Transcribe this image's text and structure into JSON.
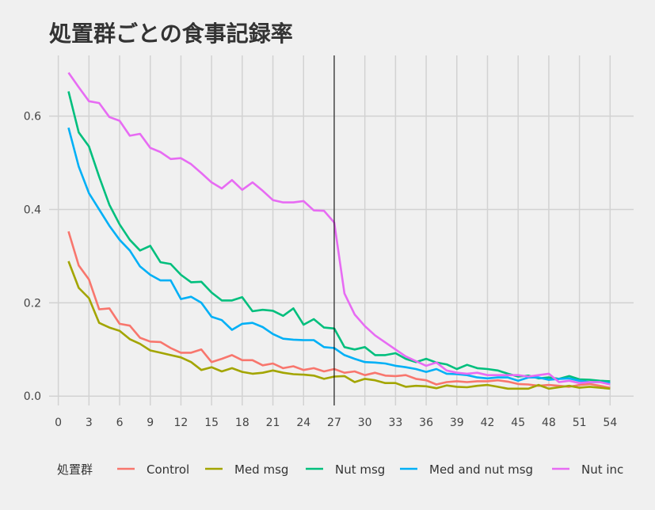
{
  "chart_data": {
    "type": "line",
    "title": "処置群ごとの食事記録率",
    "xlabel": "",
    "ylabel": "",
    "xlim": [
      -0.9,
      56.3
    ],
    "ylim": [
      -0.02,
      0.73
    ],
    "x_ticks": [
      0,
      3,
      6,
      9,
      12,
      15,
      18,
      21,
      24,
      27,
      30,
      33,
      36,
      39,
      42,
      45,
      48,
      51,
      54
    ],
    "y_ticks": [
      0.0,
      0.2,
      0.4,
      0.6
    ],
    "y_tick_labels": [
      "0.0",
      "0.2",
      "0.4",
      "0.6"
    ],
    "vline_x": 27,
    "grid": true,
    "legend_title": "処置群",
    "legend_position": "bottom",
    "x": [
      1,
      2,
      3,
      4,
      5,
      6,
      7,
      8,
      9,
      10,
      11,
      12,
      13,
      14,
      15,
      16,
      17,
      18,
      19,
      20,
      21,
      22,
      23,
      24,
      25,
      26,
      27,
      28,
      29,
      30,
      31,
      32,
      33,
      34,
      35,
      36,
      37,
      38,
      39,
      40,
      41,
      42,
      43,
      44,
      45,
      46,
      47,
      48,
      49,
      50,
      51,
      52,
      53,
      54
    ],
    "series": [
      {
        "name": "Control",
        "color": "#F8766D",
        "values": [
          0.353,
          0.28,
          0.25,
          0.186,
          0.188,
          0.155,
          0.151,
          0.125,
          0.117,
          0.116,
          0.103,
          0.093,
          0.093,
          0.1,
          0.073,
          0.08,
          0.088,
          0.077,
          0.077,
          0.066,
          0.07,
          0.06,
          0.064,
          0.056,
          0.06,
          0.053,
          0.058,
          0.05,
          0.053,
          0.045,
          0.05,
          0.044,
          0.043,
          0.045,
          0.037,
          0.034,
          0.025,
          0.03,
          0.032,
          0.03,
          0.032,
          0.032,
          0.034,
          0.031,
          0.026,
          0.025,
          0.022,
          0.024,
          0.022,
          0.02,
          0.024,
          0.026,
          0.022,
          0.018
        ]
      },
      {
        "name": "Med msg",
        "color": "#A3A500",
        "values": [
          0.289,
          0.232,
          0.21,
          0.157,
          0.147,
          0.14,
          0.122,
          0.112,
          0.098,
          0.093,
          0.088,
          0.083,
          0.073,
          0.056,
          0.062,
          0.053,
          0.06,
          0.052,
          0.048,
          0.05,
          0.055,
          0.05,
          0.047,
          0.046,
          0.044,
          0.037,
          0.042,
          0.043,
          0.03,
          0.037,
          0.034,
          0.028,
          0.028,
          0.02,
          0.022,
          0.021,
          0.017,
          0.023,
          0.02,
          0.019,
          0.022,
          0.024,
          0.02,
          0.016,
          0.016,
          0.016,
          0.024,
          0.016,
          0.019,
          0.022,
          0.018,
          0.02,
          0.018,
          0.016
        ]
      },
      {
        "name": "Nut msg",
        "color": "#00BF7D",
        "values": [
          0.653,
          0.565,
          0.535,
          0.47,
          0.41,
          0.368,
          0.335,
          0.312,
          0.322,
          0.287,
          0.283,
          0.26,
          0.244,
          0.245,
          0.222,
          0.205,
          0.205,
          0.212,
          0.182,
          0.185,
          0.183,
          0.172,
          0.188,
          0.153,
          0.165,
          0.147,
          0.145,
          0.105,
          0.1,
          0.105,
          0.088,
          0.088,
          0.092,
          0.08,
          0.073,
          0.08,
          0.072,
          0.068,
          0.058,
          0.067,
          0.06,
          0.058,
          0.055,
          0.048,
          0.042,
          0.044,
          0.038,
          0.04,
          0.037,
          0.043,
          0.036,
          0.035,
          0.033,
          0.032
        ]
      },
      {
        "name": "Med and nut msg",
        "color": "#00B0F6",
        "values": [
          0.575,
          0.492,
          0.435,
          0.4,
          0.365,
          0.335,
          0.312,
          0.278,
          0.26,
          0.248,
          0.248,
          0.208,
          0.213,
          0.2,
          0.17,
          0.163,
          0.142,
          0.155,
          0.157,
          0.148,
          0.133,
          0.123,
          0.121,
          0.12,
          0.12,
          0.105,
          0.103,
          0.088,
          0.08,
          0.073,
          0.072,
          0.07,
          0.065,
          0.062,
          0.058,
          0.052,
          0.058,
          0.048,
          0.047,
          0.045,
          0.04,
          0.038,
          0.04,
          0.04,
          0.033,
          0.04,
          0.04,
          0.035,
          0.037,
          0.038,
          0.033,
          0.03,
          0.03,
          0.028
        ]
      },
      {
        "name": "Nut inc",
        "color": "#E76BF3",
        "values": [
          0.693,
          0.662,
          0.632,
          0.628,
          0.598,
          0.59,
          0.558,
          0.562,
          0.532,
          0.523,
          0.508,
          0.51,
          0.497,
          0.478,
          0.458,
          0.445,
          0.463,
          0.442,
          0.458,
          0.44,
          0.42,
          0.415,
          0.415,
          0.418,
          0.398,
          0.397,
          0.372,
          0.22,
          0.175,
          0.15,
          0.13,
          0.115,
          0.1,
          0.085,
          0.075,
          0.065,
          0.072,
          0.055,
          0.05,
          0.048,
          0.05,
          0.045,
          0.045,
          0.045,
          0.045,
          0.042,
          0.045,
          0.048,
          0.03,
          0.033,
          0.028,
          0.03,
          0.03,
          0.025
        ]
      }
    ]
  }
}
